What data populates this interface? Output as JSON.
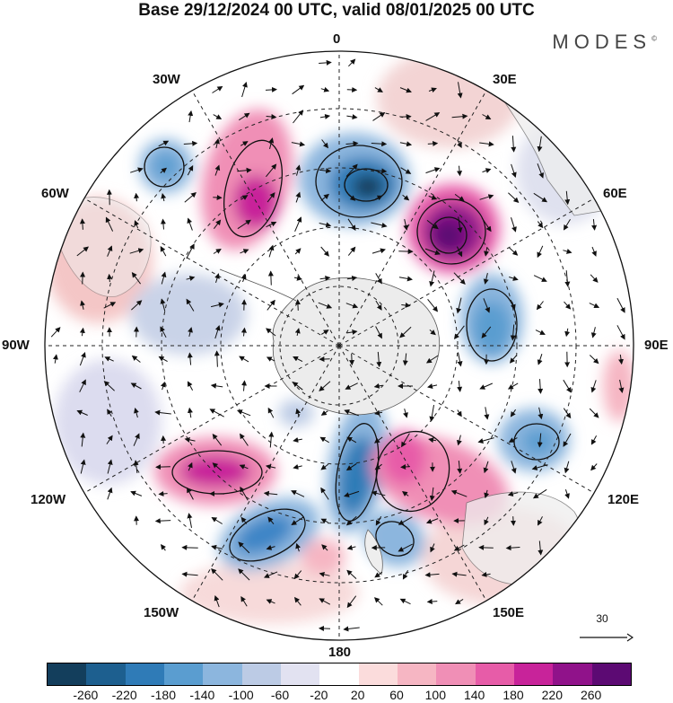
{
  "title": "Base 29/12/2024 00 UTC, valid 08/01/2025 00 UTC",
  "brand": "MODES",
  "brand_mark": "©",
  "map": {
    "projection": "south polar stereographic",
    "longitude_labels": {
      "top": "0",
      "upper_left": "30W",
      "upper_right": "30E",
      "left_upper": "60W",
      "right_upper": "60E",
      "left": "90W",
      "right": "90E",
      "left_lower": "120W",
      "right_lower": "120E",
      "lower_left": "150W",
      "lower_right": "150E",
      "bottom": "180"
    },
    "anomaly_centers": [
      {
        "name": "negative-center-prime-meridian",
        "value": -260,
        "color": "#1f4e79"
      },
      {
        "name": "positive-center-60e",
        "value": 260,
        "color": "#5b0a6e"
      },
      {
        "name": "positive-center-30w",
        "value": 180,
        "color": "#c51b8a"
      },
      {
        "name": "negative-center-45w",
        "value": -140,
        "color": "#5b9ac6"
      },
      {
        "name": "negative-center-90e",
        "value": -140,
        "color": "#5b9ac6"
      },
      {
        "name": "negative-center-180",
        "value": -220,
        "color": "#2e75b6"
      },
      {
        "name": "positive-center-150e",
        "value": 180,
        "color": "#c51b8a"
      },
      {
        "name": "positive-center-120w",
        "value": 220,
        "color": "#c51b8a"
      },
      {
        "name": "negative-center-150w",
        "value": -180,
        "color": "#3d85c6"
      },
      {
        "name": "negative-center-105e",
        "value": -140,
        "color": "#5b9ac6"
      }
    ]
  },
  "reference_vector": {
    "label": "30"
  },
  "colorbar": {
    "colors": [
      "#133e5c",
      "#1d5f8f",
      "#2f7bb7",
      "#5a9dd0",
      "#8cb6de",
      "#bccbe5",
      "#e2e2f1",
      "#ffffff",
      "#fbdcdc",
      "#f6b6c3",
      "#f08fb6",
      "#e75ca8",
      "#c8239a",
      "#90128a",
      "#5c0a73"
    ],
    "ticks": [
      "-260",
      "-220",
      "-180",
      "-140",
      "-100",
      "-60",
      "-20",
      "20",
      "60",
      "100",
      "140",
      "180",
      "220",
      "260"
    ]
  }
}
